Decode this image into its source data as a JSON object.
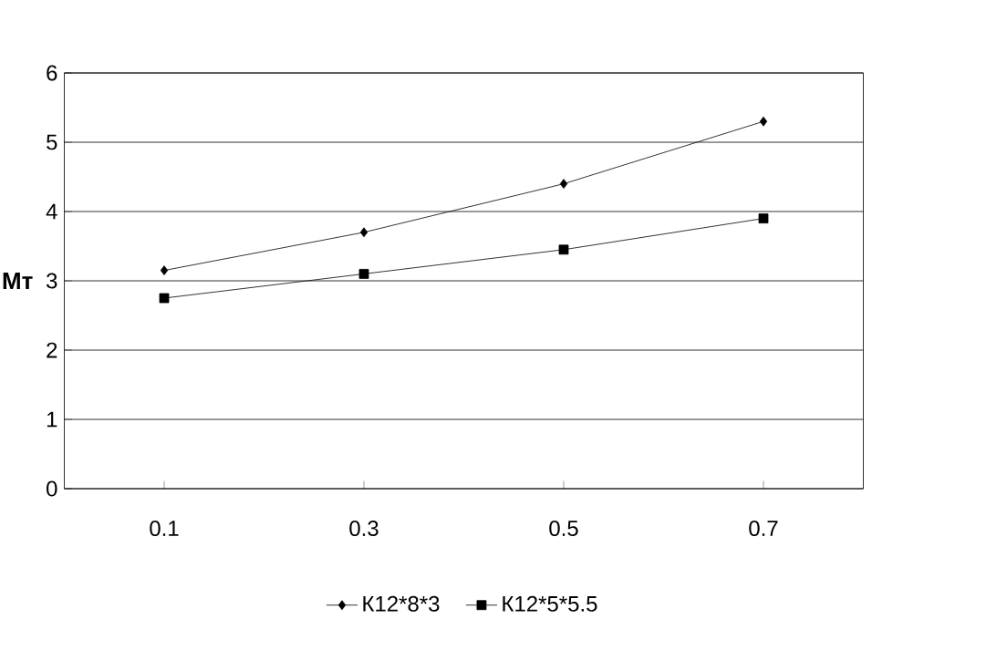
{
  "chart_data": {
    "type": "line",
    "ylabel": "Мт",
    "categories": [
      "0.1",
      "0.3",
      "0.5",
      "0.7"
    ],
    "series": [
      {
        "name": "К12*8*3",
        "color": "#000000",
        "marker": "diamond",
        "values": [
          3.15,
          3.7,
          4.4,
          5.3
        ]
      },
      {
        "name": "К12*5*5.5",
        "color": "#000000",
        "marker": "square",
        "values": [
          2.75,
          3.1,
          3.45,
          3.9
        ]
      }
    ],
    "ylim": [
      0,
      6
    ],
    "yticks": [
      0,
      1,
      2,
      3,
      4,
      5,
      6
    ],
    "grid": "y",
    "legend": "bottom",
    "line_style": "solid"
  }
}
